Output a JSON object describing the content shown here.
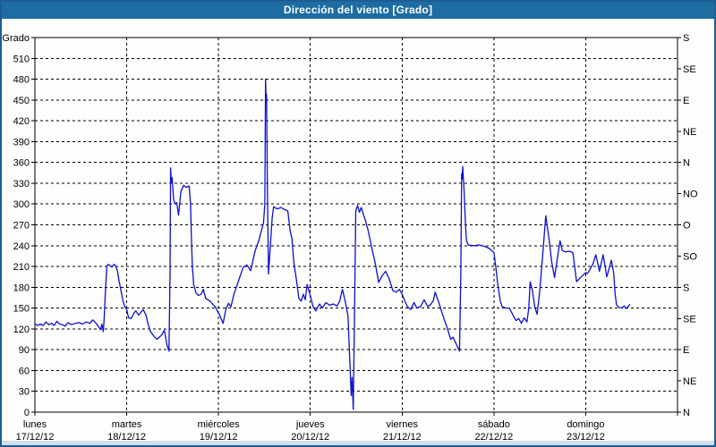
{
  "window": {
    "title": "Dirección del viento [Grado]"
  },
  "colors": {
    "titlebar_bg": "#1d6da3",
    "titlebar_text": "#ffffff",
    "window_border": "#1e5c92",
    "background": "#fdfdfb",
    "plot_border": "#000000",
    "grid": "#000000",
    "line": "#0d10d2",
    "label": "#000000",
    "bottom_strip": "#d3dfee"
  },
  "chart_data": {
    "type": "line",
    "title": "Dirección del viento [Grado]",
    "grid": true,
    "legend": false,
    "y_axis": {
      "title": "Grado",
      "min": 0,
      "max": 540,
      "step": 30,
      "tick_values": [
        510,
        480,
        450,
        420,
        390,
        360,
        330,
        300,
        270,
        240,
        210,
        180,
        150,
        120,
        90,
        60,
        30,
        0
      ]
    },
    "y_axis_right": {
      "ticks": [
        {
          "deg": 540,
          "label": "S"
        },
        {
          "deg": 495,
          "label": "SE"
        },
        {
          "deg": 450,
          "label": "E"
        },
        {
          "deg": 405,
          "label": "NE"
        },
        {
          "deg": 360,
          "label": "N"
        },
        {
          "deg": 315,
          "label": "NO"
        },
        {
          "deg": 270,
          "label": "O"
        },
        {
          "deg": 225,
          "label": "SO"
        },
        {
          "deg": 180,
          "label": "S"
        },
        {
          "deg": 135,
          "label": "SE"
        },
        {
          "deg": 90,
          "label": "E"
        },
        {
          "deg": 45,
          "label": "NE"
        },
        {
          "deg": 0,
          "label": "N"
        }
      ]
    },
    "x_axis": {
      "days": [
        {
          "name": "lunes",
          "date": "17/12/12"
        },
        {
          "name": "martes",
          "date": "18/12/12"
        },
        {
          "name": "miércoles",
          "date": "19/12/12"
        },
        {
          "name": "jueves",
          "date": "20/12/12"
        },
        {
          "name": "viernes",
          "date": "21/12/12"
        },
        {
          "name": "sábado",
          "date": "22/12/12"
        },
        {
          "name": "domingo",
          "date": "23/12/12"
        }
      ]
    },
    "series": [
      {
        "name": "Dirección del viento",
        "color": "#0d10d2",
        "x_unit": "days_from_monday_start",
        "y_unit": "degrees",
        "points": [
          [
            0.0,
            127
          ],
          [
            0.03,
            125
          ],
          [
            0.06,
            127
          ],
          [
            0.09,
            125
          ],
          [
            0.12,
            130
          ],
          [
            0.15,
            126
          ],
          [
            0.18,
            128
          ],
          [
            0.21,
            125
          ],
          [
            0.24,
            131
          ],
          [
            0.27,
            127
          ],
          [
            0.3,
            126
          ],
          [
            0.33,
            124
          ],
          [
            0.36,
            129
          ],
          [
            0.4,
            126
          ],
          [
            0.44,
            128
          ],
          [
            0.48,
            129
          ],
          [
            0.52,
            127
          ],
          [
            0.56,
            130
          ],
          [
            0.6,
            128
          ],
          [
            0.63,
            133
          ],
          [
            0.66,
            129
          ],
          [
            0.7,
            122
          ],
          [
            0.715,
            119
          ],
          [
            0.73,
            127
          ],
          [
            0.745,
            116
          ],
          [
            0.755,
            135
          ],
          [
            0.77,
            180
          ],
          [
            0.785,
            211
          ],
          [
            0.8,
            213
          ],
          [
            0.82,
            211
          ],
          [
            0.84,
            209
          ],
          [
            0.86,
            213
          ],
          [
            0.88,
            211
          ],
          [
            0.9,
            203
          ],
          [
            0.915,
            190
          ],
          [
            0.935,
            177
          ],
          [
            0.96,
            160
          ],
          [
            0.98,
            152
          ],
          [
            1.0,
            148
          ],
          [
            1.02,
            136
          ],
          [
            1.05,
            135
          ],
          [
            1.08,
            143
          ],
          [
            1.1,
            146
          ],
          [
            1.13,
            140
          ],
          [
            1.15,
            143
          ],
          [
            1.18,
            148
          ],
          [
            1.21,
            140
          ],
          [
            1.23,
            128
          ],
          [
            1.26,
            116
          ],
          [
            1.3,
            109
          ],
          [
            1.33,
            105
          ],
          [
            1.38,
            111
          ],
          [
            1.41,
            118
          ],
          [
            1.44,
            96
          ],
          [
            1.46,
            88
          ],
          [
            1.472,
            200
          ],
          [
            1.478,
            352
          ],
          [
            1.487,
            330
          ],
          [
            1.495,
            338
          ],
          [
            1.51,
            308
          ],
          [
            1.525,
            300
          ],
          [
            1.545,
            302
          ],
          [
            1.565,
            284
          ],
          [
            1.59,
            318
          ],
          [
            1.62,
            327
          ],
          [
            1.65,
            324
          ],
          [
            1.68,
            326
          ],
          [
            1.695,
            300
          ],
          [
            1.705,
            250
          ],
          [
            1.715,
            211
          ],
          [
            1.73,
            184
          ],
          [
            1.755,
            172
          ],
          [
            1.78,
            168
          ],
          [
            1.81,
            170
          ],
          [
            1.835,
            177
          ],
          [
            1.86,
            164
          ],
          [
            1.885,
            162
          ],
          [
            1.91,
            160
          ],
          [
            1.94,
            155
          ],
          [
            1.965,
            152
          ],
          [
            1.99,
            145
          ],
          [
            2.01,
            141
          ],
          [
            2.03,
            134
          ],
          [
            2.05,
            128
          ],
          [
            2.08,
            148
          ],
          [
            2.11,
            157
          ],
          [
            2.135,
            152
          ],
          [
            2.17,
            171
          ],
          [
            2.22,
            190
          ],
          [
            2.27,
            209
          ],
          [
            2.31,
            212
          ],
          [
            2.35,
            204
          ],
          [
            2.4,
            233
          ],
          [
            2.44,
            248
          ],
          [
            2.465,
            260
          ],
          [
            2.49,
            273
          ],
          [
            2.505,
            300
          ],
          [
            2.512,
            480
          ],
          [
            2.518,
            452
          ],
          [
            2.523,
            458
          ],
          [
            2.532,
            330
          ],
          [
            2.545,
            199
          ],
          [
            2.565,
            240
          ],
          [
            2.585,
            280
          ],
          [
            2.6,
            296
          ],
          [
            2.64,
            293
          ],
          [
            2.68,
            295
          ],
          [
            2.72,
            292
          ],
          [
            2.755,
            290
          ],
          [
            2.78,
            262
          ],
          [
            2.8,
            250
          ],
          [
            2.82,
            216
          ],
          [
            2.85,
            190
          ],
          [
            2.875,
            164
          ],
          [
            2.9,
            160
          ],
          [
            2.925,
            170
          ],
          [
            2.945,
            162
          ],
          [
            2.965,
            184
          ],
          [
            3.0,
            168
          ],
          [
            3.03,
            152
          ],
          [
            3.06,
            146
          ],
          [
            3.1,
            156
          ],
          [
            3.13,
            150
          ],
          [
            3.17,
            158
          ],
          [
            3.21,
            154
          ],
          [
            3.25,
            156
          ],
          [
            3.29,
            153
          ],
          [
            3.32,
            160
          ],
          [
            3.35,
            177
          ],
          [
            3.38,
            160
          ],
          [
            3.41,
            139
          ],
          [
            3.435,
            60
          ],
          [
            3.445,
            24
          ],
          [
            3.455,
            50
          ],
          [
            3.468,
            4
          ],
          [
            3.48,
            120
          ],
          [
            3.495,
            290
          ],
          [
            3.515,
            298
          ],
          [
            3.535,
            288
          ],
          [
            3.555,
            295
          ],
          [
            3.6,
            276
          ],
          [
            3.63,
            262
          ],
          [
            3.67,
            237
          ],
          [
            3.71,
            213
          ],
          [
            3.745,
            187
          ],
          [
            3.78,
            196
          ],
          [
            3.82,
            203
          ],
          [
            3.86,
            192
          ],
          [
            3.9,
            175
          ],
          [
            3.935,
            173
          ],
          [
            3.97,
            177
          ],
          [
            4.0,
            170
          ],
          [
            4.03,
            160
          ],
          [
            4.06,
            152
          ],
          [
            4.095,
            148
          ],
          [
            4.13,
            158
          ],
          [
            4.16,
            150
          ],
          [
            4.2,
            152
          ],
          [
            4.24,
            162
          ],
          [
            4.28,
            152
          ],
          [
            4.31,
            155
          ],
          [
            4.34,
            161
          ],
          [
            4.36,
            173
          ],
          [
            4.4,
            158
          ],
          [
            4.44,
            141
          ],
          [
            4.49,
            122
          ],
          [
            4.53,
            105
          ],
          [
            4.555,
            108
          ],
          [
            4.59,
            98
          ],
          [
            4.625,
            88
          ],
          [
            4.64,
            200
          ],
          [
            4.648,
            344
          ],
          [
            4.654,
            336
          ],
          [
            4.66,
            354
          ],
          [
            4.675,
            320
          ],
          [
            4.69,
            271
          ],
          [
            4.7,
            248
          ],
          [
            4.72,
            241
          ],
          [
            4.78,
            240
          ],
          [
            4.84,
            241
          ],
          [
            4.9,
            239
          ],
          [
            4.95,
            236
          ],
          [
            5.0,
            230
          ],
          [
            5.02,
            210
          ],
          [
            5.04,
            186
          ],
          [
            5.07,
            160
          ],
          [
            5.09,
            152
          ],
          [
            5.13,
            150
          ],
          [
            5.17,
            150
          ],
          [
            5.21,
            139
          ],
          [
            5.24,
            132
          ],
          [
            5.27,
            135
          ],
          [
            5.3,
            128
          ],
          [
            5.33,
            136
          ],
          [
            5.36,
            130
          ],
          [
            5.38,
            150
          ],
          [
            5.395,
            188
          ],
          [
            5.42,
            175
          ],
          [
            5.445,
            152
          ],
          [
            5.47,
            141
          ],
          [
            5.5,
            175
          ],
          [
            5.53,
            224
          ],
          [
            5.565,
            283
          ],
          [
            5.6,
            250
          ],
          [
            5.63,
            216
          ],
          [
            5.66,
            194
          ],
          [
            5.7,
            230
          ],
          [
            5.72,
            247
          ],
          [
            5.745,
            233
          ],
          [
            5.78,
            231
          ],
          [
            5.82,
            232
          ],
          [
            5.86,
            230
          ],
          [
            5.9,
            188
          ],
          [
            5.95,
            195
          ],
          [
            6.0,
            201
          ],
          [
            6.02,
            200
          ],
          [
            6.05,
            207
          ],
          [
            6.08,
            214
          ],
          [
            6.11,
            227
          ],
          [
            6.15,
            203
          ],
          [
            6.19,
            227
          ],
          [
            6.23,
            195
          ],
          [
            6.28,
            219
          ],
          [
            6.305,
            200
          ],
          [
            6.32,
            170
          ],
          [
            6.335,
            155
          ],
          [
            6.36,
            151
          ],
          [
            6.39,
            150
          ],
          [
            6.42,
            153
          ],
          [
            6.44,
            149
          ],
          [
            6.46,
            152
          ],
          [
            6.48,
            155
          ]
        ]
      }
    ]
  }
}
